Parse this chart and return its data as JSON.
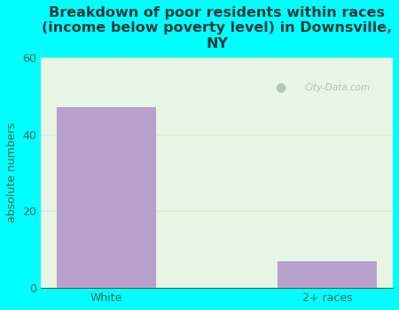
{
  "categories": [
    "White",
    "2+ races"
  ],
  "values": [
    47,
    7
  ],
  "bar_color": "#b8a0cc",
  "title": "Breakdown of poor residents within races\n(income below poverty level) in Downsville,\nNY",
  "ylabel": "absolute numbers",
  "ylim": [
    0,
    60
  ],
  "yticks": [
    0,
    20,
    40,
    60
  ],
  "background_color": "#00ffff",
  "plot_bg_color": "#e8f5e4",
  "title_fontsize": 11.5,
  "label_fontsize": 9,
  "tick_fontsize": 9,
  "bar_width": 0.45,
  "watermark_text": "City-Data.com",
  "watermark_color": "#a8bdb5",
  "grid_color": "#d8e8d0",
  "tick_color": "#336655",
  "title_color": "#1a3a3a",
  "ylabel_color": "#336655"
}
